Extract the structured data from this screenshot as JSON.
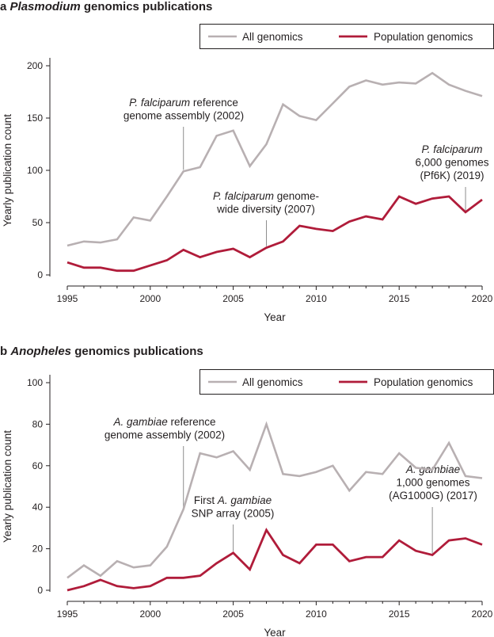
{
  "colors": {
    "all_genomics": "#b8b0b2",
    "population_genomics": "#b01c3a",
    "axis": "#231f20",
    "leader": "#8c8c8c"
  },
  "chart_data": [
    {
      "type": "line",
      "panel_letter": "a",
      "title_italic": "Plasmodium",
      "title_rest": " genomics publications",
      "xlabel": "Year",
      "ylabel": "Yearly publication count",
      "xlim": [
        1995,
        2020
      ],
      "ylim": [
        0,
        200
      ],
      "xticks": [
        1995,
        2000,
        2005,
        2010,
        2015,
        2020
      ],
      "yticks": [
        0,
        50,
        100,
        150,
        200
      ],
      "legend": {
        "position": "top-right",
        "entries": [
          "All genomics",
          "Population genomics"
        ]
      },
      "x": [
        1995,
        1996,
        1997,
        1998,
        1999,
        2000,
        2001,
        2002,
        2003,
        2004,
        2005,
        2006,
        2007,
        2008,
        2009,
        2010,
        2011,
        2012,
        2013,
        2014,
        2015,
        2016,
        2017,
        2018,
        2019,
        2020
      ],
      "series": [
        {
          "name": "All genomics",
          "values": [
            28,
            32,
            31,
            34,
            55,
            52,
            75,
            99,
            103,
            133,
            138,
            104,
            125,
            163,
            152,
            148,
            164,
            180,
            186,
            182,
            184,
            183,
            193,
            182,
            176,
            171
          ]
        },
        {
          "name": "Population genomics",
          "values": [
            12,
            7,
            7,
            4,
            4,
            9,
            14,
            24,
            17,
            22,
            25,
            17,
            26,
            32,
            47,
            44,
            42,
            51,
            56,
            53,
            75,
            68,
            73,
            75,
            60,
            72
          ]
        }
      ],
      "annotations": [
        {
          "lines": [
            [
              {
                "t": "P. falciparum",
                "i": true
              },
              {
                "t": " reference",
                "i": false
              }
            ],
            [
              {
                "t": "genome assembly (2002)",
                "i": false
              }
            ]
          ],
          "x": 2002,
          "series": 0,
          "align": "middle"
        },
        {
          "lines": [
            [
              {
                "t": "P. falciparum",
                "i": true
              },
              {
                "t": " genome-",
                "i": false
              }
            ],
            [
              {
                "t": "wide diversity (2007)",
                "i": false
              }
            ]
          ],
          "x": 2007,
          "series": 1,
          "align": "middle"
        },
        {
          "lines": [
            [
              {
                "t": "P. falciparum",
                "i": true
              }
            ],
            [
              {
                "t": "6,000 genomes",
                "i": false
              }
            ],
            [
              {
                "t": "(Pf6K) (2019)",
                "i": false
              }
            ]
          ],
          "x": 2019,
          "series": 1,
          "align": "middle"
        }
      ]
    },
    {
      "type": "line",
      "panel_letter": "b",
      "title_italic": "Anopheles",
      "title_rest": " genomics publications",
      "xlabel": "Year",
      "ylabel": "Yearly publication count",
      "xlim": [
        1995,
        2020
      ],
      "ylim": [
        0,
        100
      ],
      "xticks": [
        1995,
        2000,
        2005,
        2010,
        2015,
        2020
      ],
      "yticks": [
        0,
        20,
        40,
        60,
        80,
        100
      ],
      "legend": {
        "position": "top-right",
        "entries": [
          "All genomics",
          "Population genomics"
        ]
      },
      "x": [
        1995,
        1996,
        1997,
        1998,
        1999,
        2000,
        2001,
        2002,
        2003,
        2004,
        2005,
        2006,
        2007,
        2008,
        2009,
        2010,
        2011,
        2012,
        2013,
        2014,
        2015,
        2016,
        2017,
        2018,
        2019,
        2020
      ],
      "series": [
        {
          "name": "All genomics",
          "values": [
            6,
            12,
            7,
            14,
            11,
            12,
            21,
            39,
            66,
            64,
            67,
            58,
            80,
            56,
            55,
            57,
            60,
            48,
            57,
            56,
            66,
            59,
            58,
            71,
            55,
            54
          ]
        },
        {
          "name": "Population genomics",
          "values": [
            0,
            2,
            5,
            2,
            1,
            2,
            6,
            6,
            7,
            13,
            18,
            10,
            29,
            17,
            13,
            22,
            22,
            14,
            16,
            16,
            24,
            19,
            17,
            24,
            25,
            22
          ]
        }
      ],
      "annotations": [
        {
          "lines": [
            [
              {
                "t": "A. gambiae",
                "i": true
              },
              {
                "t": " reference",
                "i": false
              }
            ],
            [
              {
                "t": "genome assembly (2002)",
                "i": false
              }
            ]
          ],
          "x": 2002,
          "series": 0,
          "align": "middle"
        },
        {
          "lines": [
            [
              {
                "t": "First ",
                "i": false
              },
              {
                "t": "A. gambiae",
                "i": true
              }
            ],
            [
              {
                "t": "SNP array (2005)",
                "i": false
              }
            ]
          ],
          "x": 2005,
          "series": 1,
          "align": "middle"
        },
        {
          "lines": [
            [
              {
                "t": "A. gambiae",
                "i": true
              }
            ],
            [
              {
                "t": "1,000 genomes",
                "i": false
              }
            ],
            [
              {
                "t": "(AG1000G) (2017)",
                "i": false
              }
            ]
          ],
          "x": 2017,
          "series": 1,
          "align": "middle"
        }
      ]
    }
  ]
}
